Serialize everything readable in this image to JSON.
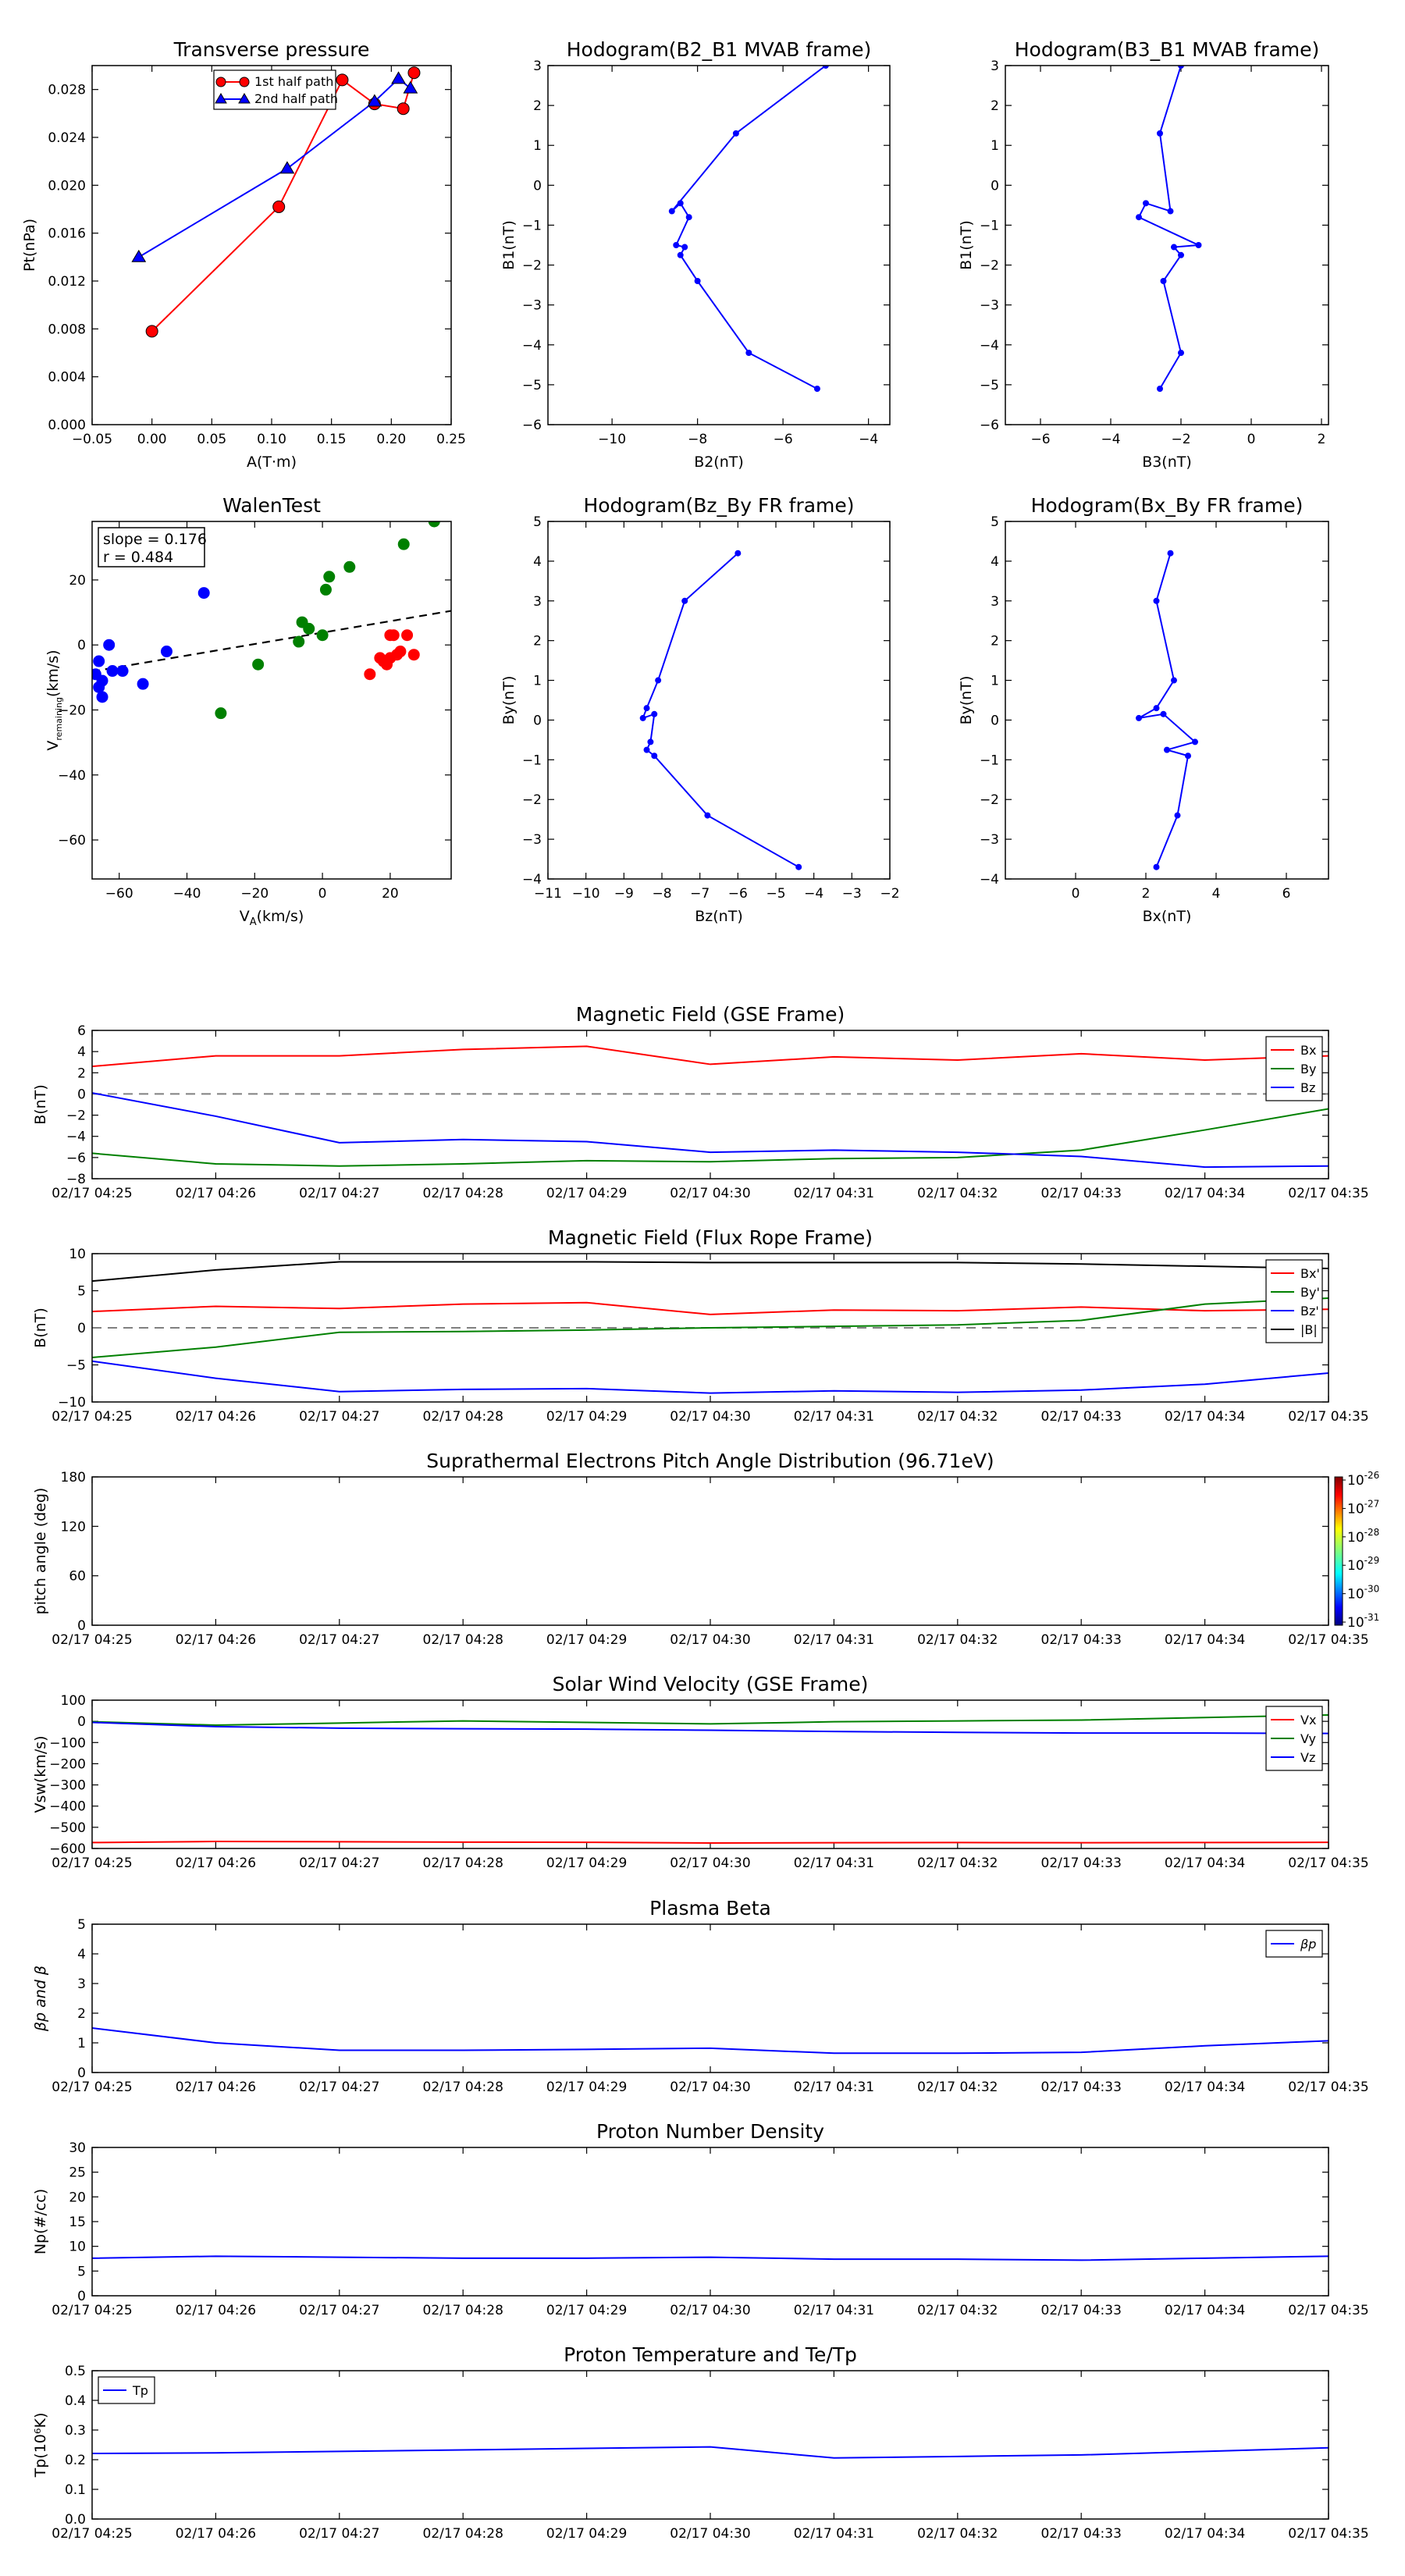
{
  "colors": {
    "red": "#ff0000",
    "green": "#008000",
    "blue": "#0000ff",
    "black": "#000000",
    "gray": "#808080"
  },
  "time_ticks": [
    "02/17 04:25",
    "02/17 04:26",
    "02/17 04:27",
    "02/17 04:28",
    "02/17 04:29",
    "02/17 04:30",
    "02/17 04:31",
    "02/17 04:32",
    "02/17 04:33",
    "02/17 04:34",
    "02/17 04:35"
  ],
  "chart_data": [
    {
      "id": "transverse-pressure",
      "type": "line",
      "title": "Transverse pressure",
      "xlabel": "A(T·m)",
      "ylabel": "Pt(nPa)",
      "xlim": [
        -0.05,
        0.25
      ],
      "ylim": [
        0.0,
        0.03
      ],
      "xticks": [
        -0.05,
        0.0,
        0.05,
        0.1,
        0.15,
        0.2,
        0.25
      ],
      "xtick_labels": [
        "−0.05",
        "0.00",
        "0.05",
        "0.10",
        "0.15",
        "0.20",
        "0.25"
      ],
      "yticks": [
        0.0,
        0.004,
        0.008,
        0.012,
        0.016,
        0.02,
        0.024,
        0.028
      ],
      "ytick_labels": [
        "0.000",
        "0.004",
        "0.008",
        "0.012",
        "0.016",
        "0.020",
        "0.024",
        "0.028"
      ],
      "legend": "top-center",
      "series": [
        {
          "name": "1st half path",
          "color": "#ff0000",
          "marker": "circle",
          "x": [
            0.0,
            0.106,
            0.159,
            0.186,
            0.21,
            0.219
          ],
          "y": [
            0.0078,
            0.0182,
            0.0288,
            0.0268,
            0.0264,
            0.0294
          ]
        },
        {
          "name": "2nd half path",
          "color": "#0000ff",
          "marker": "triangle",
          "x": [
            -0.011,
            0.113,
            0.186,
            0.206,
            0.216
          ],
          "y": [
            0.014,
            0.0214,
            0.027,
            0.0289,
            0.0281
          ]
        }
      ]
    },
    {
      "id": "hodogram-b2-b1",
      "type": "line",
      "title": "Hodogram(B2_B1 MVAB frame)",
      "xlabel": "B2(nT)",
      "ylabel": "B1(nT)",
      "xlim": [
        -11.5,
        -3.5
      ],
      "ylim": [
        -6,
        3
      ],
      "xticks": [
        -10,
        -8,
        -6,
        -4
      ],
      "xtick_labels": [
        "−10",
        "−8",
        "−6",
        "−4"
      ],
      "yticks": [
        -6,
        -5,
        -4,
        -3,
        -2,
        -1,
        0,
        1,
        2,
        3
      ],
      "ytick_labels": [
        "−6",
        "−5",
        "−4",
        "−3",
        "−2",
        "−1",
        "0",
        "1",
        "2",
        "3"
      ],
      "series": [
        {
          "color": "#0000ff",
          "x": [
            -5.0,
            -7.1,
            -8.6,
            -8.4,
            -8.2,
            -8.5,
            -8.3,
            -8.4,
            -8.0,
            -6.8,
            -5.2
          ],
          "y": [
            3.0,
            1.3,
            -0.65,
            -0.45,
            -0.8,
            -1.5,
            -1.55,
            -1.75,
            -2.4,
            -4.2,
            -5.1
          ]
        }
      ]
    },
    {
      "id": "hodogram-b3-b1",
      "type": "line",
      "title": "Hodogram(B3_B1 MVAB frame)",
      "xlabel": "B3(nT)",
      "ylabel": "B1(nT)",
      "xlim": [
        -7,
        2.2
      ],
      "ylim": [
        -6,
        3
      ],
      "xticks": [
        -6,
        -4,
        -2,
        0,
        2
      ],
      "xtick_labels": [
        "−6",
        "−4",
        "−2",
        "0",
        "2"
      ],
      "yticks": [
        -6,
        -5,
        -4,
        -3,
        -2,
        -1,
        0,
        1,
        2,
        3
      ],
      "ytick_labels": [
        "−6",
        "−5",
        "−4",
        "−3",
        "−2",
        "−1",
        "0",
        "1",
        "2",
        "3"
      ],
      "series": [
        {
          "color": "#0000ff",
          "x": [
            -2.0,
            -2.6,
            -2.3,
            -3.0,
            -3.2,
            -1.5,
            -2.2,
            -2.0,
            -2.5,
            -2.0,
            -2.6
          ],
          "y": [
            3.0,
            1.3,
            -0.65,
            -0.45,
            -0.8,
            -1.5,
            -1.55,
            -1.75,
            -2.4,
            -4.2,
            -5.1
          ]
        }
      ]
    },
    {
      "id": "walen-test",
      "type": "scatter",
      "title": "WalenTest",
      "xlabel": "V_A(km/s)",
      "ylabel": "V_remaining(km/s)",
      "xlim": [
        -68,
        38
      ],
      "ylim": [
        -72,
        38
      ],
      "xticks": [
        -60,
        -40,
        -20,
        0,
        20
      ],
      "xtick_labels": [
        "−60",
        "−40",
        "−20",
        "0",
        "20"
      ],
      "yticks": [
        -60,
        -40,
        -20,
        0,
        20
      ],
      "ytick_labels": [
        "−60",
        "−40",
        "−20",
        "0",
        "20"
      ],
      "annotation": [
        "slope = 0.176",
        "r = 0.484"
      ],
      "fit_line": {
        "slope": 0.176,
        "intercept": 3.8
      },
      "series": [
        {
          "color": "#0000ff",
          "x": [
            -65,
            -66,
            -67,
            -66,
            -65,
            -63,
            -62,
            -59,
            -53,
            -46,
            -35
          ],
          "y": [
            -16,
            -13,
            -9,
            -5,
            -11,
            0,
            -8,
            -8,
            -12,
            -2,
            16
          ]
        },
        {
          "color": "#008000",
          "x": [
            -30,
            -19,
            -7,
            -6,
            -4,
            0,
            1,
            2,
            8,
            24,
            33
          ],
          "y": [
            -21,
            -6,
            1,
            7,
            5,
            3,
            17,
            21,
            24,
            31,
            38
          ]
        },
        {
          "color": "#ff0000",
          "x": [
            14,
            17,
            18,
            19,
            20,
            21,
            22,
            23,
            25,
            27,
            20
          ],
          "y": [
            -9,
            -4,
            -5,
            -6,
            -4,
            3,
            -3,
            -2,
            3,
            -3,
            3
          ]
        }
      ]
    },
    {
      "id": "hodogram-bz-by",
      "type": "line",
      "title": "Hodogram(Bz_By FR frame)",
      "xlabel": "Bz(nT)",
      "ylabel": "By(nT)",
      "xlim": [
        -11,
        -2
      ],
      "ylim": [
        -4,
        5
      ],
      "xticks": [
        -11,
        -10,
        -9,
        -8,
        -7,
        -6,
        -5,
        -4,
        -3,
        -2
      ],
      "xtick_labels": [
        "−11",
        "−10",
        "−9",
        "−8",
        "−7",
        "−6",
        "−5",
        "−4",
        "−3",
        "−2"
      ],
      "yticks": [
        -4,
        -3,
        -2,
        -1,
        0,
        1,
        2,
        3,
        4,
        5
      ],
      "ytick_labels": [
        "−4",
        "−3",
        "−2",
        "−1",
        "0",
        "1",
        "2",
        "3",
        "4",
        "5"
      ],
      "series": [
        {
          "color": "#0000ff",
          "x": [
            -6.0,
            -7.4,
            -8.1,
            -8.4,
            -8.5,
            -8.2,
            -8.3,
            -8.4,
            -8.2,
            -6.8,
            -4.4
          ],
          "y": [
            4.2,
            3.0,
            1.0,
            0.3,
            0.05,
            0.15,
            -0.55,
            -0.75,
            -0.9,
            -2.4,
            -3.7
          ]
        }
      ]
    },
    {
      "id": "hodogram-bx-by",
      "type": "line",
      "title": "Hodogram(Bx_By FR frame)",
      "xlabel": "Bx(nT)",
      "ylabel": "By(nT)",
      "xlim": [
        -2,
        7.2
      ],
      "ylim": [
        -4,
        5
      ],
      "xticks": [
        0,
        2,
        4,
        6
      ],
      "xtick_labels": [
        "0",
        "2",
        "4",
        "6"
      ],
      "yticks": [
        -4,
        -3,
        -2,
        -1,
        0,
        1,
        2,
        3,
        4,
        5
      ],
      "ytick_labels": [
        "−4",
        "−3",
        "−2",
        "−1",
        "0",
        "1",
        "2",
        "3",
        "4",
        "5"
      ],
      "series": [
        {
          "color": "#0000ff",
          "x": [
            2.7,
            2.3,
            2.8,
            2.3,
            1.8,
            2.5,
            3.4,
            2.6,
            3.2,
            2.9,
            2.3
          ],
          "y": [
            4.2,
            3.0,
            1.0,
            0.3,
            0.05,
            0.15,
            -0.55,
            -0.75,
            -0.9,
            -2.4,
            -3.7
          ]
        }
      ]
    },
    {
      "id": "mag-gse",
      "type": "line",
      "title": "Magnetic Field (GSE Frame)",
      "ylabel": "B(nT)",
      "x": [
        0,
        1,
        2,
        3,
        4,
        5,
        6,
        7,
        8,
        9,
        10
      ],
      "ylim": [
        -8,
        6
      ],
      "yticks": [
        -8,
        -6,
        -4,
        -2,
        0,
        2,
        4,
        6
      ],
      "ytick_labels": [
        "−8",
        "−6",
        "−4",
        "−2",
        "0",
        "2",
        "4",
        "6"
      ],
      "zero_line": true,
      "legend": "top-right",
      "series": [
        {
          "name": "Bx",
          "color": "#ff0000",
          "values": [
            2.6,
            3.6,
            3.6,
            4.2,
            4.5,
            2.8,
            3.5,
            3.2,
            3.8,
            3.2,
            3.6
          ]
        },
        {
          "name": "By",
          "color": "#008000",
          "values": [
            -5.6,
            -6.6,
            -6.8,
            -6.6,
            -6.3,
            -6.4,
            -6.1,
            -6.0,
            -5.3,
            -3.4,
            -1.4
          ]
        },
        {
          "name": "Bz",
          "color": "#0000ff",
          "values": [
            0.1,
            -2.1,
            -4.6,
            -4.3,
            -4.5,
            -5.5,
            -5.3,
            -5.5,
            -5.9,
            -6.9,
            -6.8
          ]
        }
      ]
    },
    {
      "id": "mag-fr",
      "type": "line",
      "title": "Magnetic Field (Flux Rope Frame)",
      "ylabel": "B(nT)",
      "x": [
        0,
        1,
        2,
        3,
        4,
        5,
        6,
        7,
        8,
        9,
        10
      ],
      "ylim": [
        -10,
        10
      ],
      "yticks": [
        -10,
        -5,
        0,
        5,
        10
      ],
      "ytick_labels": [
        "−10",
        "−5",
        "0",
        "5",
        "10"
      ],
      "zero_line": true,
      "legend": "top-right",
      "series": [
        {
          "name": "Bx'",
          "color": "#ff0000",
          "values": [
            2.2,
            2.9,
            2.6,
            3.2,
            3.4,
            1.8,
            2.4,
            2.3,
            2.8,
            2.3,
            2.5
          ]
        },
        {
          "name": "By'",
          "color": "#008000",
          "values": [
            -4.0,
            -2.6,
            -0.6,
            -0.5,
            -0.3,
            0.0,
            0.2,
            0.4,
            1.0,
            3.2,
            4.0
          ]
        },
        {
          "name": "Bz'",
          "color": "#0000ff",
          "values": [
            -4.5,
            -6.8,
            -8.6,
            -8.3,
            -8.2,
            -8.8,
            -8.5,
            -8.7,
            -8.4,
            -7.6,
            -6.1
          ]
        },
        {
          "name": "|B|",
          "color": "#000000",
          "values": [
            6.3,
            7.8,
            8.9,
            8.9,
            8.9,
            8.8,
            8.8,
            8.8,
            8.6,
            8.3,
            8.0
          ]
        }
      ]
    },
    {
      "id": "pitch-angle",
      "type": "heatmap",
      "title": "Suprathermal Electrons Pitch Angle Distribution (96.71eV)",
      "ylabel": "pitch angle (deg)",
      "ylim": [
        0,
        180
      ],
      "yticks": [
        0,
        60,
        120,
        180
      ],
      "ytick_labels": [
        "0",
        "60",
        "120",
        "180"
      ],
      "colorbar_exponents": [
        "-26",
        "-27",
        "-28",
        "-29",
        "-30",
        "-31"
      ],
      "colorbar_base": "10"
    },
    {
      "id": "sw-velocity",
      "type": "line",
      "title": "Solar Wind Velocity (GSE Frame)",
      "ylabel": "Vsw(km/s)",
      "x": [
        0,
        1,
        2,
        3,
        4,
        5,
        6,
        7,
        8,
        9,
        10
      ],
      "ylim": [
        -600,
        100
      ],
      "yticks": [
        -600,
        -500,
        -400,
        -300,
        -200,
        -100,
        0,
        100
      ],
      "ytick_labels": [
        "−600",
        "−500",
        "−400",
        "−300",
        "−200",
        "−100",
        "0",
        "100"
      ],
      "legend": "top-right",
      "series": [
        {
          "name": "Vx",
          "color": "#ff0000",
          "values": [
            -572,
            -567,
            -568,
            -570,
            -571,
            -574,
            -573,
            -572,
            -573,
            -572,
            -571
          ]
        },
        {
          "name": "Vy",
          "color": "#008000",
          "values": [
            -2,
            -18,
            -8,
            2,
            -5,
            -12,
            -2,
            2,
            6,
            18,
            30
          ]
        },
        {
          "name": "Vz",
          "color": "#0000ff",
          "values": [
            -5,
            -25,
            -32,
            -35,
            -37,
            -42,
            -48,
            -52,
            -55,
            -55,
            -57
          ]
        }
      ]
    },
    {
      "id": "plasma-beta",
      "type": "line",
      "title": "Plasma Beta",
      "ylabel": "βp and β",
      "x": [
        0,
        1,
        2,
        3,
        4,
        5,
        6,
        7,
        8,
        9,
        10
      ],
      "ylim": [
        0,
        5
      ],
      "yticks": [
        0,
        1,
        2,
        3,
        4,
        5
      ],
      "ytick_labels": [
        "0",
        "1",
        "2",
        "3",
        "4",
        "5"
      ],
      "legend": "top-right",
      "series": [
        {
          "name": "βp",
          "color": "#0000ff",
          "values": [
            1.5,
            1.0,
            0.75,
            0.75,
            0.78,
            0.82,
            0.65,
            0.65,
            0.68,
            0.9,
            1.07
          ]
        }
      ]
    },
    {
      "id": "proton-density",
      "type": "line",
      "title": "Proton Number Density",
      "ylabel": "Np(#/cc)",
      "x": [
        0,
        1,
        2,
        3,
        4,
        5,
        6,
        7,
        8,
        9,
        10
      ],
      "ylim": [
        0,
        30
      ],
      "yticks": [
        0,
        5,
        10,
        15,
        20,
        25,
        30
      ],
      "ytick_labels": [
        "0",
        "5",
        "10",
        "15",
        "20",
        "25",
        "30"
      ],
      "series": [
        {
          "color": "#0000ff",
          "values": [
            7.6,
            8.0,
            7.8,
            7.6,
            7.6,
            7.8,
            7.4,
            7.4,
            7.2,
            7.6,
            8.0
          ]
        }
      ]
    },
    {
      "id": "proton-temperature",
      "type": "line",
      "title": "Proton Temperature and Te/Tp",
      "ylabel": "Tp(10⁶K)",
      "x": [
        0,
        1,
        2,
        3,
        4,
        5,
        6,
        7,
        8,
        9,
        10
      ],
      "ylim": [
        0,
        0.5
      ],
      "yticks": [
        0,
        0.1,
        0.2,
        0.3,
        0.4,
        0.5
      ],
      "ytick_labels": [
        "0.0",
        "0.1",
        "0.2",
        "0.3",
        "0.4",
        "0.5"
      ],
      "legend": "top-left",
      "series": [
        {
          "name": "Tp",
          "color": "#0000ff",
          "values": [
            0.221,
            0.223,
            0.228,
            0.233,
            0.238,
            0.243,
            0.206,
            0.211,
            0.216,
            0.228,
            0.24
          ]
        }
      ]
    }
  ]
}
